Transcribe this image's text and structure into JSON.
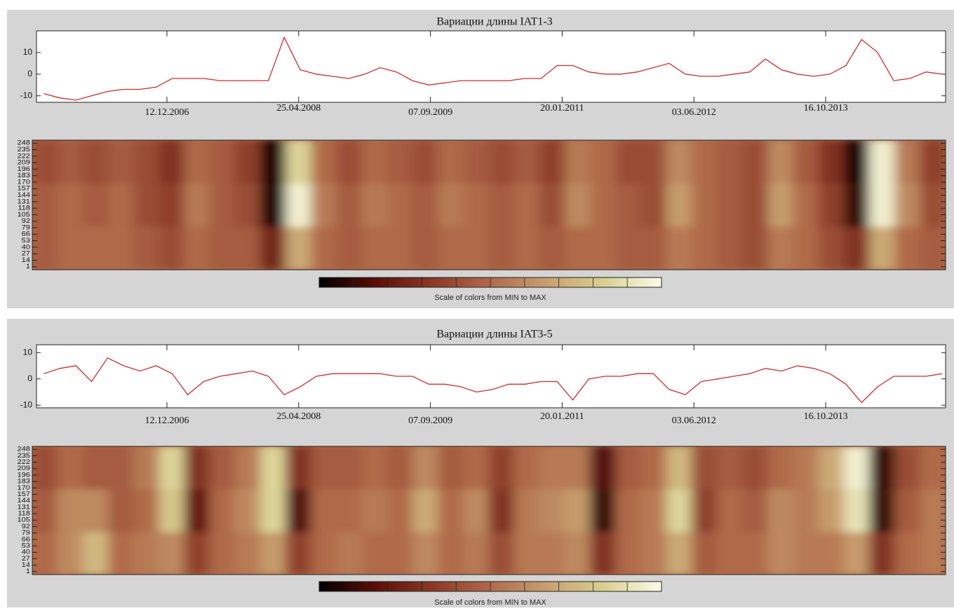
{
  "chart_data": [
    {
      "type": "line",
      "title": "Вариации длины IAT1-3",
      "x": [
        "01.09.2005",
        "01.11.2005",
        "01.01.2006",
        "01.03.2006",
        "01.05.2006",
        "01.07.2006",
        "01.09.2006",
        "01.11.2006",
        "01.01.2007",
        "01.03.2007",
        "01.05.2007",
        "01.07.2007",
        "01.09.2007",
        "01.11.2007",
        "01.01.2008",
        "01.03.2008",
        "01.05.2008",
        "01.07.2008",
        "01.09.2008",
        "01.11.2008",
        "01.01.2009",
        "01.03.2009",
        "01.05.2009",
        "01.07.2009",
        "01.09.2009",
        "01.11.2009",
        "01.01.2010",
        "01.03.2010",
        "01.05.2010",
        "01.07.2010",
        "01.09.2010",
        "01.11.2010",
        "01.01.2011",
        "01.03.2011",
        "01.05.2011",
        "01.07.2011",
        "01.09.2011",
        "01.11.2011",
        "01.01.2012",
        "01.03.2012",
        "01.05.2012",
        "01.07.2012",
        "01.09.2012",
        "01.11.2012",
        "01.01.2013",
        "01.03.2013",
        "01.05.2013",
        "01.07.2013",
        "01.09.2013",
        "01.11.2013",
        "01.01.2014",
        "01.03.2014",
        "01.05.2014",
        "01.07.2014",
        "01.09.2014",
        "01.11.2014",
        "01.01.2015"
      ],
      "series": [
        {
          "color": "#d42a2a",
          "values": [
            -9,
            -11,
            -12,
            -10,
            -8,
            -7,
            -7,
            -6,
            -2,
            -2,
            -2,
            -3,
            -3,
            -3,
            -3,
            17,
            2,
            0,
            -1,
            -2,
            0,
            3,
            1,
            -3,
            -5,
            -4,
            -3,
            -3,
            -3,
            -3,
            -2,
            -2,
            4,
            4,
            1,
            0,
            0,
            1,
            3,
            5,
            0,
            -1,
            -1,
            0,
            1,
            7,
            2,
            0,
            -1,
            0,
            4,
            16,
            10,
            -3,
            -2,
            1,
            0
          ]
        }
      ],
      "xlim": [
        "04.08.2005",
        "14.01.2015"
      ],
      "xticks": [
        "12.12.2006",
        "25.04.2008",
        "07.09.2009",
        "20.01.2011",
        "03.06.2012",
        "16.10.2013"
      ],
      "ylim": [
        -13,
        20
      ],
      "yticks": [
        -10,
        0,
        10
      ]
    },
    {
      "type": "heatmap",
      "values": [
        [
          0.45,
          0.5,
          0.5,
          0.5,
          0.45,
          0.4,
          0.5,
          0.45,
          0.45,
          0.25,
          0.7,
          0.5,
          0.45,
          0.5,
          0.5,
          0.45,
          0.5,
          0.5,
          0.45,
          0.5,
          0.45,
          0.5,
          0.5,
          0.45,
          0.45,
          0.55,
          0.5,
          0.45,
          0.4,
          0.55,
          0.5,
          0.4,
          0.3,
          0.7,
          0.5,
          0.45
        ],
        [
          0.45,
          0.5,
          0.45,
          0.5,
          0.4,
          0.35,
          0.55,
          0.45,
          0.4,
          0.05,
          0.95,
          0.55,
          0.45,
          0.55,
          0.5,
          0.45,
          0.55,
          0.5,
          0.45,
          0.5,
          0.4,
          0.6,
          0.5,
          0.45,
          0.4,
          0.65,
          0.5,
          0.45,
          0.4,
          0.65,
          0.5,
          0.35,
          0.1,
          0.95,
          0.6,
          0.4
        ],
        [
          0.4,
          0.45,
          0.4,
          0.45,
          0.4,
          0.3,
          0.5,
          0.45,
          0.35,
          0.05,
          0.85,
          0.5,
          0.4,
          0.5,
          0.45,
          0.4,
          0.5,
          0.45,
          0.4,
          0.45,
          0.35,
          0.55,
          0.5,
          0.4,
          0.4,
          0.6,
          0.5,
          0.45,
          0.4,
          0.6,
          0.45,
          0.3,
          0.05,
          0.95,
          0.55,
          0.35
        ]
      ],
      "ylim": [
        -5,
        254
      ],
      "yticks": [
        1,
        14,
        27,
        40,
        53,
        66,
        79,
        92,
        105,
        118,
        131,
        144,
        157,
        170,
        183,
        196,
        209,
        222,
        235,
        248
      ],
      "colors": [
        "#000000",
        "#5a0f08",
        "#8a3a26",
        "#b06a4a",
        "#c8a070",
        "#d8d090",
        "#fcfcec"
      ],
      "colorbar_label": "Scale of colors from MIN to MAX"
    },
    {
      "type": "line",
      "title": "Вариации длины IAT3-5",
      "x": [
        "01.09.2005",
        "01.11.2005",
        "01.01.2006",
        "01.03.2006",
        "01.05.2006",
        "01.07.2006",
        "01.09.2006",
        "01.11.2006",
        "01.01.2007",
        "01.03.2007",
        "01.05.2007",
        "01.07.2007",
        "01.09.2007",
        "01.11.2007",
        "01.01.2008",
        "01.03.2008",
        "01.05.2008",
        "01.07.2008",
        "01.09.2008",
        "01.11.2008",
        "01.01.2009",
        "01.03.2009",
        "01.05.2009",
        "01.07.2009",
        "01.09.2009",
        "01.11.2009",
        "01.01.2010",
        "01.03.2010",
        "01.05.2010",
        "01.07.2010",
        "01.09.2010",
        "01.11.2010",
        "01.01.2011",
        "01.03.2011",
        "01.05.2011",
        "01.07.2011",
        "01.09.2011",
        "01.11.2011",
        "01.01.2012",
        "01.03.2012",
        "01.05.2012",
        "01.07.2012",
        "01.09.2012",
        "01.11.2012",
        "01.01.2013",
        "01.03.2013",
        "01.05.2013",
        "01.07.2013",
        "01.09.2013",
        "01.11.2013",
        "01.01.2014",
        "01.03.2014",
        "01.05.2014",
        "01.07.2014",
        "01.09.2014",
        "01.11.2014",
        "01.01.2015"
      ],
      "series": [
        {
          "color": "#d42a2a",
          "values": [
            2,
            4,
            5,
            -1,
            8,
            5,
            3,
            5,
            2,
            -6,
            -1,
            1,
            2,
            3,
            1,
            -6,
            -3,
            1,
            2,
            2,
            2,
            2,
            1,
            1,
            -2,
            -2,
            -3,
            -5,
            -4,
            -2,
            -2,
            -1,
            -1,
            -8,
            0,
            1,
            1,
            2,
            2,
            -4,
            -6,
            -1,
            0,
            1,
            2,
            4,
            3,
            5,
            4,
            2,
            -2,
            -9,
            -3,
            1,
            1,
            1,
            2
          ]
        }
      ],
      "xlim": [
        "04.08.2005",
        "14.01.2015"
      ],
      "xticks": [
        "12.12.2006",
        "25.04.2008",
        "07.09.2009",
        "20.01.2011",
        "03.06.2012",
        "16.10.2013"
      ],
      "ylim": [
        -11,
        13
      ],
      "yticks": [
        -10,
        0,
        10
      ]
    },
    {
      "type": "heatmap",
      "values": [
        [
          0.5,
          0.6,
          0.75,
          0.5,
          0.55,
          0.6,
          0.35,
          0.5,
          0.55,
          0.65,
          0.35,
          0.5,
          0.55,
          0.5,
          0.5,
          0.6,
          0.5,
          0.55,
          0.4,
          0.55,
          0.55,
          0.6,
          0.3,
          0.5,
          0.55,
          0.7,
          0.45,
          0.5,
          0.5,
          0.6,
          0.55,
          0.55,
          0.65,
          0.3,
          0.5,
          0.55
        ],
        [
          0.45,
          0.6,
          0.6,
          0.45,
          0.5,
          0.8,
          0.2,
          0.5,
          0.6,
          0.85,
          0.15,
          0.5,
          0.5,
          0.55,
          0.5,
          0.7,
          0.5,
          0.6,
          0.3,
          0.55,
          0.6,
          0.65,
          0.1,
          0.5,
          0.55,
          0.85,
          0.35,
          0.5,
          0.45,
          0.6,
          0.55,
          0.65,
          0.9,
          0.1,
          0.45,
          0.55
        ],
        [
          0.4,
          0.5,
          0.45,
          0.45,
          0.55,
          0.85,
          0.3,
          0.45,
          0.55,
          0.85,
          0.3,
          0.45,
          0.45,
          0.5,
          0.45,
          0.6,
          0.45,
          0.5,
          0.35,
          0.5,
          0.55,
          0.55,
          0.15,
          0.45,
          0.5,
          0.75,
          0.4,
          0.45,
          0.4,
          0.5,
          0.55,
          0.7,
          0.95,
          0.1,
          0.4,
          0.5
        ]
      ],
      "ylim": [
        -5,
        254
      ],
      "yticks": [
        1,
        14,
        27,
        40,
        53,
        66,
        79,
        92,
        105,
        118,
        131,
        144,
        157,
        170,
        183,
        196,
        209,
        222,
        235,
        248
      ],
      "colors": [
        "#000000",
        "#5a0f08",
        "#8a3a26",
        "#b06a4a",
        "#c8a070",
        "#d8d090",
        "#fcfcec"
      ],
      "colorbar_label": "Scale of colors from MIN to MAX"
    }
  ]
}
